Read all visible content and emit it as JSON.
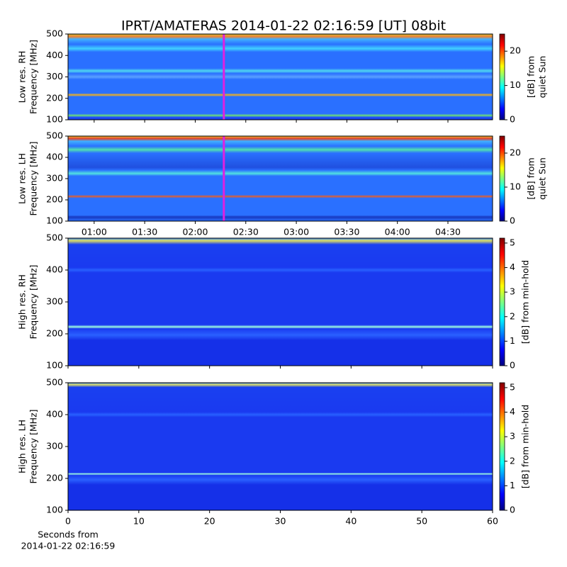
{
  "chart_data": [
    {
      "type": "heatmap",
      "title": "IPRT/AMATERAS 2014-01-22 02:16:59 [UT]   08bit",
      "ylabel": [
        "Low res. RH",
        "Frequency [MHz]"
      ],
      "ylim": [
        100,
        500
      ],
      "yticks": [
        100,
        200,
        300,
        400,
        500
      ],
      "xlim": [
        44.5,
        296.5
      ],
      "marker": {
        "value": 136.98,
        "color": "#e020e0"
      },
      "clim": [
        0,
        25
      ],
      "cticks": [
        0,
        10,
        20
      ],
      "cbar_label": [
        "[dB] from",
        "quiet Sun"
      ],
      "colormap": "jet"
    },
    {
      "type": "heatmap",
      "ylabel": [
        "Low res. LH",
        "Frequency [MHz]"
      ],
      "ylim": [
        100,
        500
      ],
      "yticks": [
        100,
        200,
        300,
        400,
        500
      ],
      "xlim": [
        44.5,
        296.5
      ],
      "xticks": [
        {
          "value": 60,
          "label": "01:00"
        },
        {
          "value": 90,
          "label": "01:30"
        },
        {
          "value": 120,
          "label": "02:00"
        },
        {
          "value": 150,
          "label": "02:30"
        },
        {
          "value": 180,
          "label": "03:00"
        },
        {
          "value": 210,
          "label": "03:30"
        },
        {
          "value": 240,
          "label": "04:00"
        },
        {
          "value": 270,
          "label": "04:30"
        }
      ],
      "marker": {
        "value": 136.98,
        "color": "#e020e0"
      },
      "clim": [
        0,
        25
      ],
      "cticks": [
        0,
        10,
        20
      ],
      "cbar_label": [
        "[dB] from",
        "quiet Sun"
      ],
      "colormap": "jet"
    },
    {
      "type": "heatmap",
      "ylabel": [
        "High res. RH",
        "Frequency [MHz]"
      ],
      "ylim": [
        100,
        500
      ],
      "yticks": [
        100,
        200,
        300,
        400,
        500
      ],
      "xlim": [
        0,
        60
      ],
      "clim": [
        0,
        5.2
      ],
      "cticks": [
        0,
        1,
        2,
        3,
        4,
        5
      ],
      "cbar_label": [
        "[dB] from min-hold"
      ],
      "colormap": "jet"
    },
    {
      "type": "heatmap",
      "ylabel": [
        "High res. LH",
        "Frequency [MHz]"
      ],
      "ylim": [
        100,
        500
      ],
      "yticks": [
        100,
        200,
        300,
        400,
        500
      ],
      "xlim": [
        0,
        60
      ],
      "xticks": [
        0,
        10,
        20,
        30,
        40,
        50,
        60
      ],
      "xlabel": [
        "Seconds from",
        "2014-01-22 02:16:59"
      ],
      "clim": [
        0,
        5.2
      ],
      "cticks": [
        0,
        1,
        2,
        3,
        4,
        5
      ],
      "cbar_label": [
        "[dB] from min-hold"
      ],
      "colormap": "jet"
    }
  ]
}
